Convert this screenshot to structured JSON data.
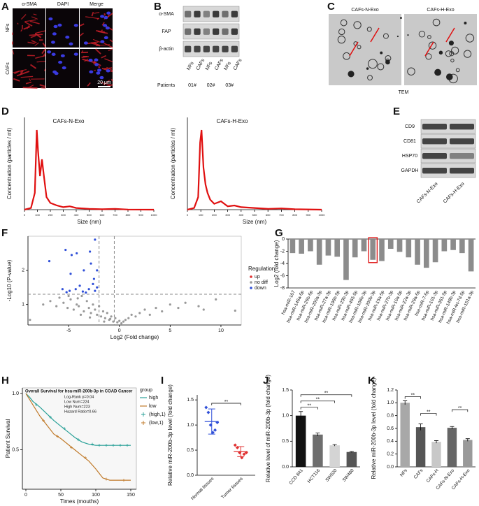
{
  "panel_labels": [
    "A",
    "B",
    "C",
    "D",
    "E",
    "F",
    "G",
    "H",
    "I",
    "J",
    "K"
  ],
  "panel_a": {
    "columns": [
      "α-SMA",
      "DAPI",
      "Merge"
    ],
    "rows": [
      "NFs",
      "CAFs"
    ],
    "scale_bar": "20 μm"
  },
  "panel_b": {
    "bands": [
      "α-SMA",
      "FAP",
      "β-actin"
    ],
    "lanes": [
      "NFs",
      "CAFs",
      "NFs",
      "CAFs",
      "NFs",
      "CAFs"
    ],
    "patients_label": "Patients",
    "patients": [
      "01#",
      "02#",
      "03#"
    ]
  },
  "panel_c": {
    "titles": [
      "CAFs-N-Exo",
      "CAFs-H-Exo"
    ],
    "caption": "TEM"
  },
  "panel_e": {
    "bands": [
      "CD9",
      "CD81",
      "HSP70",
      "GAPDH"
    ],
    "lanes": [
      "CAFs-N-Exo",
      "CAFs-H-Exo"
    ]
  },
  "chart_data": [
    {
      "type": "line",
      "title": "CAFs-N-Exo",
      "x_label": "Size (nm)",
      "y_label": "Concentration (particles / ml)",
      "color": "#e01010",
      "x": [
        0,
        50,
        80,
        95,
        105,
        120,
        135,
        150,
        170,
        200,
        250,
        300,
        350,
        400,
        500,
        600,
        700,
        800,
        1000
      ],
      "values": [
        0,
        0.2,
        2,
        9.5,
        7,
        4,
        6,
        4,
        1.5,
        0.8,
        0.5,
        0.3,
        0.4,
        0.2,
        0.1,
        0.05,
        0.1,
        0.02,
        0
      ],
      "xlim": [
        0,
        1000
      ],
      "ylim": [
        0,
        11
      ],
      "xticks": [
        0,
        100,
        200,
        300,
        400,
        500,
        600,
        700,
        800,
        900,
        1000
      ]
    },
    {
      "type": "line",
      "title": "CAFs-H-Exo",
      "x_label": "Size (nm)",
      "y_label": "Concentration (particles / ml)",
      "color": "#e01010",
      "x": [
        0,
        50,
        80,
        95,
        105,
        120,
        135,
        150,
        170,
        200,
        250,
        300,
        350,
        400,
        500,
        600,
        700,
        800,
        1000
      ],
      "values": [
        0,
        0.2,
        1.5,
        8,
        9.5,
        5,
        3,
        2,
        1.2,
        0.7,
        1,
        0.4,
        0.5,
        0.3,
        0.2,
        0.1,
        0.15,
        0.05,
        0
      ],
      "xlim": [
        0,
        1000
      ],
      "ylim": [
        0,
        11
      ],
      "xticks": [
        0,
        100,
        200,
        300,
        400,
        500,
        600,
        700,
        800,
        900,
        1000
      ]
    },
    {
      "type": "scatter",
      "x_label": "Log2 (Fold change)",
      "y_label": "-Log10 (P-value)",
      "legend_title": "Regulation",
      "xlim": [
        -9,
        12
      ],
      "ylim": [
        0.4,
        3
      ],
      "xticks": [
        -5,
        0,
        5,
        10
      ],
      "yticks": [
        1,
        2
      ],
      "threshold_y": [
        1.3
      ],
      "threshold_x": [
        -2,
        -0.5
      ],
      "series": [
        {
          "name": "up",
          "color": "#e03030",
          "x": [],
          "values": []
        },
        {
          "name": "no diff",
          "color": "#999999",
          "x": [
            -8.8,
            -7.5,
            -6.8,
            -6.2,
            -5.9,
            -5.5,
            -5.1,
            -4.8,
            -4.5,
            -4.2,
            -4.0,
            -3.7,
            -3.5,
            -3.2,
            -3.0,
            -2.8,
            -2.6,
            -2.4,
            -2.2,
            -2.0,
            -1.8,
            -1.6,
            -1.4,
            -1.2,
            -1.0,
            -0.8,
            -0.6,
            -0.4,
            -0.2,
            0.0,
            0.2,
            0.4,
            0.6,
            0.9,
            1.2,
            1.6,
            2.0,
            2.5,
            3.0,
            3.6,
            4.2,
            5.0,
            5.8,
            6.5,
            7.8,
            8.3,
            9.5,
            11.4,
            -3.8,
            -2.9,
            -1.5,
            -0.9,
            -5.0,
            -4.1
          ],
          "values": [
            0.55,
            1.0,
            1.1,
            0.95,
            1.2,
            1.05,
            0.9,
            1.15,
            0.85,
            1.0,
            0.95,
            1.25,
            0.8,
            1.1,
            0.9,
            0.75,
            1.0,
            0.85,
            0.7,
            0.95,
            0.65,
            0.8,
            0.6,
            0.75,
            0.55,
            0.65,
            0.5,
            0.6,
            0.48,
            0.52,
            0.45,
            0.5,
            0.55,
            0.6,
            0.7,
            0.65,
            0.75,
            0.85,
            0.7,
            0.9,
            0.8,
            1.0,
            0.9,
            1.05,
            0.95,
            0.85,
            1.15,
            0.82,
            0.7,
            0.62,
            0.5,
            0.58,
            1.25,
            1.18
          ]
        },
        {
          "name": "down",
          "color": "#2f4fd8",
          "x": [
            -6.9,
            -5.3,
            -4.7,
            -4.2,
            -2.9,
            -2.4,
            -2.8,
            -2.2,
            -3.5,
            -4.8,
            -2.5,
            -3.9,
            -2.6,
            -5.6,
            -4.9,
            -4.3,
            -3.6,
            -3.0,
            -2.4,
            -2.2,
            -5.2,
            -3.3
          ],
          "values": [
            2.27,
            2.6,
            2.45,
            2.5,
            2.55,
            2.9,
            2.2,
            2.0,
            2.0,
            1.9,
            1.75,
            1.55,
            1.6,
            1.45,
            1.4,
            1.45,
            1.38,
            1.45,
            1.4,
            1.5,
            1.36,
            1.35
          ]
        }
      ]
    },
    {
      "type": "bar",
      "y_label": "Log2 (fold change)",
      "color": "#8c8c8c",
      "highlight_index": 9,
      "highlight_color": "#e02020",
      "categories": [
        "hsa-miR-107",
        "hsa-miR-146a-5p",
        "hsa-miR-26b-5p",
        "hsa-miR-200a-3p",
        "hsa-miR-27a-3p",
        "hsa-miR-196b-5p",
        "hsa-miR-23b-3p",
        "hsa-miR-455-5p",
        "hsa-miR-106b-3p",
        "hsa-miR-200b-3p",
        "hsa-miR-15a-5p",
        "hsa-miR-27b-3p",
        "hsa-miR-10a-5p",
        "hsa-miR-22a-3p",
        "hsa-miR-29a-5p",
        "hsa-miR-7-5p",
        "hsa-miR-101-3p",
        "hsa-miR-361-5p",
        "hsa-miR-148b-3p",
        "hsa-miR-let-7d-5p",
        "hsa-miR-151a-3p"
      ],
      "values": [
        -2.3,
        -2.4,
        -2.0,
        -4.2,
        -2.7,
        -2.9,
        -6.7,
        -3.0,
        -2.0,
        -3.4,
        -3.6,
        -1.6,
        -2.1,
        -3.0,
        -4.2,
        -4.7,
        -3.8,
        -2.0,
        -1.8,
        -2.3,
        -5.3
      ],
      "ylim": [
        -8,
        0
      ],
      "yticks": [
        0,
        -2,
        -4,
        -6,
        -8
      ]
    },
    {
      "type": "survival",
      "title": "Overall Survival for hsa-miR-200b-3p in COAD Cancer",
      "annotations": [
        "Log-Rank p=0.04",
        "Low Num=224",
        "High Num=223",
        "Hazard Ratio=0.66"
      ],
      "x_label": "Times (mouths)",
      "y_label": "Patient Survival",
      "legend_title": "group",
      "xlim": [
        -5,
        158
      ],
      "ylim": [
        0.15,
        1.05
      ],
      "xticks": [
        0,
        50,
        100,
        150
      ],
      "yticks": [
        0.5,
        {
          "value": 1,
          "label": "1.0"
        }
      ],
      "series": [
        {
          "name": "high",
          "color": "#2aa198",
          "style": "line",
          "x": [
            0,
            5,
            10,
            20,
            30,
            40,
            50,
            60,
            70,
            80,
            90,
            100,
            120,
            150
          ],
          "values": [
            1,
            0.97,
            0.93,
            0.88,
            0.82,
            0.76,
            0.71,
            0.66,
            0.61,
            0.57,
            0.55,
            0.54,
            0.54,
            0.54
          ]
        },
        {
          "name": "low",
          "color": "#c07a2a",
          "style": "line",
          "x": [
            0,
            5,
            10,
            20,
            30,
            40,
            50,
            60,
            70,
            80,
            90,
            100,
            110,
            120,
            150
          ],
          "values": [
            1,
            0.95,
            0.9,
            0.8,
            0.72,
            0.64,
            0.6,
            0.55,
            0.5,
            0.45,
            0.4,
            0.33,
            0.25,
            0.23,
            0.23
          ]
        },
        {
          "name": "(high,1)",
          "color": "#2aa198",
          "style": "censor",
          "x": [
            15,
            35,
            55,
            75,
            95,
            105,
            115,
            125,
            135,
            145
          ],
          "values": [
            0.9,
            0.79,
            0.69,
            0.59,
            0.55,
            0.54,
            0.54,
            0.54,
            0.54,
            0.54
          ]
        },
        {
          "name": "(low,1)",
          "color": "#c07a2a",
          "style": "censor",
          "x": [
            25,
            45,
            65,
            85,
            115,
            140
          ],
          "values": [
            0.76,
            0.62,
            0.52,
            0.43,
            0.24,
            0.23
          ]
        }
      ]
    },
    {
      "type": "dot",
      "y_label": "Relative miR-200b-3p level (fold change)",
      "categories": [
        "Normal tissues",
        "Tumor tissues"
      ],
      "colors": [
        "#2f4fd8",
        "#e03030"
      ],
      "values": [
        1.07,
        0.47
      ],
      "errors": [
        0.25,
        0.1
      ],
      "points": [
        [
          1.35,
          1.25,
          1.0,
          0.85,
          0.9,
          1.05
        ],
        [
          0.6,
          0.55,
          0.45,
          0.35,
          0.42,
          0.45
        ]
      ],
      "ylim": [
        0,
        1.6
      ],
      "yticks": [
        {
          "value": 0,
          "label": "0.0"
        },
        0.5,
        {
          "value": 1,
          "label": "1.0"
        },
        1.5
      ],
      "annotations": [
        {
          "from": 0,
          "to": 1,
          "text": "**"
        }
      ]
    },
    {
      "type": "bar",
      "y_label": "Relative level of miR-200b-3p (fold change)",
      "categories": [
        "CCD 841",
        "HCT116",
        "SW620",
        "SW480"
      ],
      "colors": [
        "#111111",
        "#6e6e6e",
        "#d4d4d4",
        "#555555"
      ],
      "values": [
        1.0,
        0.63,
        0.42,
        0.29
      ],
      "errors": [
        0.08,
        0.03,
        0.015,
        0.01
      ],
      "ylim": [
        0,
        1.5
      ],
      "yticks": [
        {
          "value": 0,
          "label": "0.0"
        },
        0.5,
        {
          "value": 1,
          "label": "1.0"
        },
        1.5
      ],
      "annotations": [
        {
          "from": 0,
          "to": 1,
          "text": "**"
        },
        {
          "from": 0,
          "to": 2,
          "text": "**"
        },
        {
          "from": 0,
          "to": 3,
          "text": "**"
        }
      ]
    },
    {
      "type": "bar",
      "y_label": "Relative miR-200b-3p level (fold change)",
      "categories": [
        "NFs",
        "CAFs",
        "CAFs-H",
        "CAFs-N-Exo",
        "CAFs-H-Exo"
      ],
      "colors": [
        "#a8a8a8",
        "#555555",
        "#c8c8c8",
        "#666666",
        "#9a9a9a"
      ],
      "values": [
        1.0,
        0.62,
        0.39,
        0.61,
        0.42
      ],
      "errors": [
        0.03,
        0.05,
        0.02,
        0.02,
        0.02
      ],
      "ylim": [
        0,
        1.2
      ],
      "yticks": [
        {
          "value": 0,
          "label": "0.0"
        },
        0.2,
        0.4,
        0.6,
        0.8,
        {
          "value": 1,
          "label": "1.0"
        },
        1.2
      ],
      "annotations": [
        {
          "from": 0,
          "to": 1,
          "text": "**"
        },
        {
          "from": 1,
          "to": 2,
          "text": "**"
        },
        {
          "from": 3,
          "to": 4,
          "text": "**"
        }
      ]
    }
  ]
}
